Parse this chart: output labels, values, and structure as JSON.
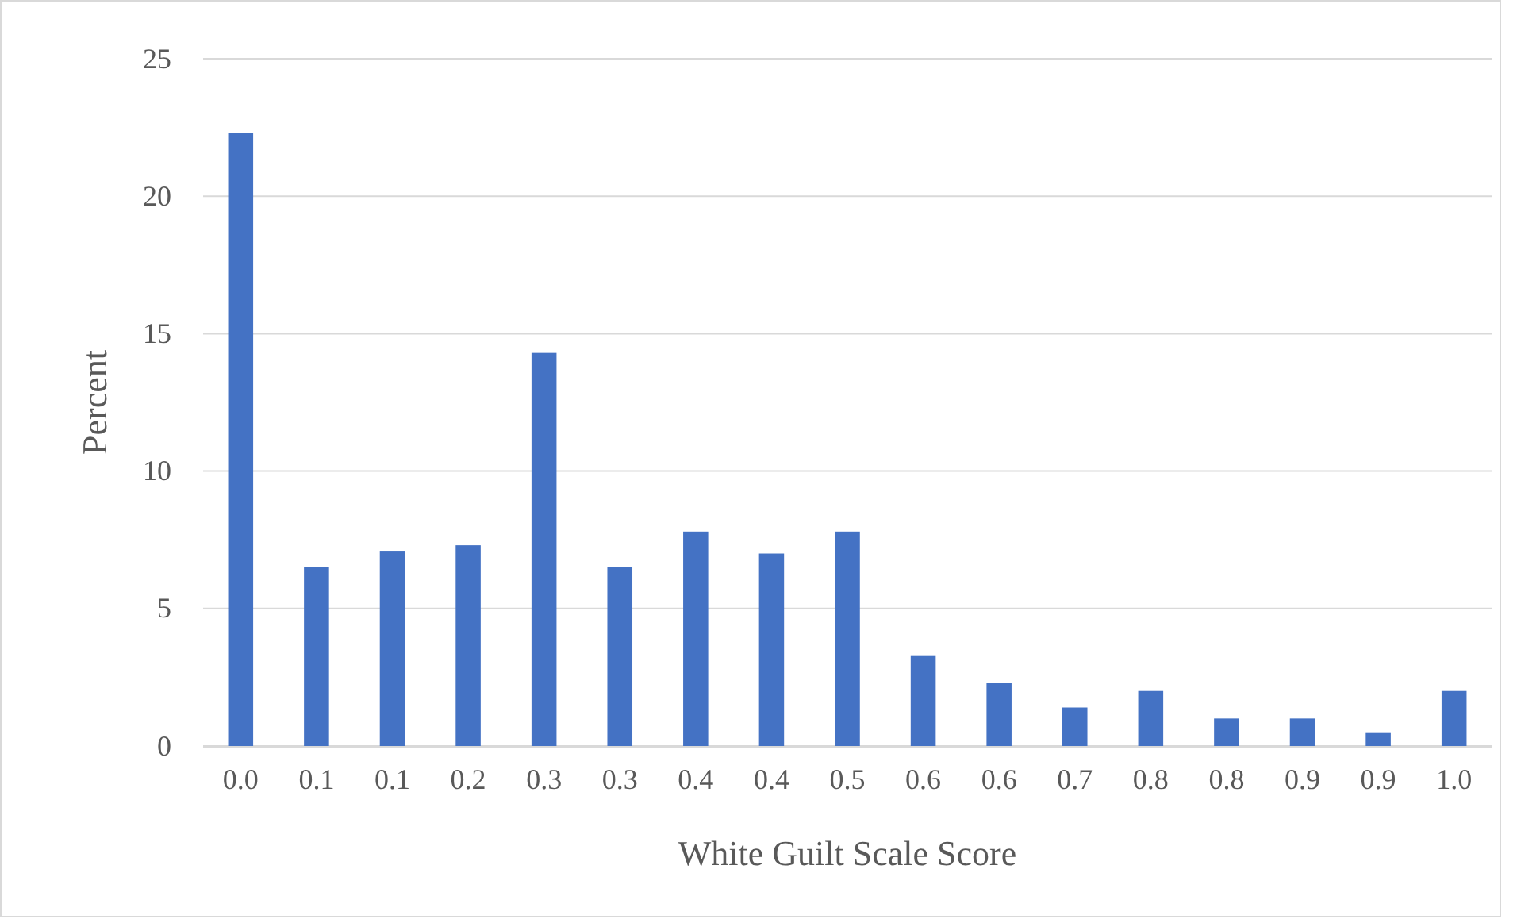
{
  "chart_data": {
    "type": "bar",
    "xlabel": "White Guilt Scale Score",
    "ylabel": "Percent",
    "categories": [
      "0.0",
      "0.1",
      "0.1",
      "0.2",
      "0.3",
      "0.3",
      "0.4",
      "0.4",
      "0.5",
      "0.6",
      "0.6",
      "0.7",
      "0.8",
      "0.8",
      "0.9",
      "0.9",
      "1.0"
    ],
    "values": [
      22.3,
      6.5,
      7.1,
      7.3,
      14.3,
      6.5,
      7.8,
      7.0,
      7.8,
      3.3,
      2.3,
      1.4,
      2.0,
      1.0,
      1.0,
      0.5,
      2.0
    ],
    "color": "#4472c4",
    "ylim": [
      0,
      25
    ],
    "yticks": [
      0,
      5,
      10,
      15,
      20,
      25
    ],
    "grid": "y"
  }
}
